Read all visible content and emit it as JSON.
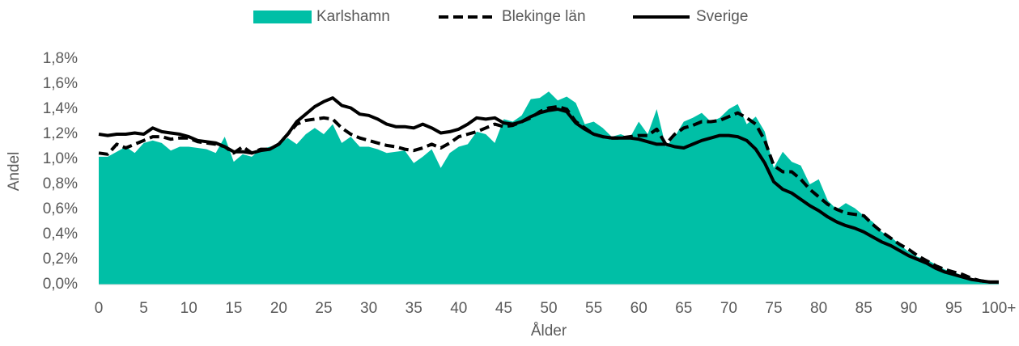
{
  "chart_data": {
    "type": "line",
    "x_label": "Ålder",
    "y_label": "Andel",
    "categories": [
      "0",
      null,
      null,
      null,
      null,
      "5",
      null,
      null,
      null,
      null,
      "10",
      null,
      null,
      null,
      null,
      "15",
      null,
      null,
      null,
      null,
      "20",
      null,
      null,
      null,
      null,
      "25",
      null,
      null,
      null,
      null,
      "30",
      null,
      null,
      null,
      null,
      "35",
      null,
      null,
      null,
      null,
      "40",
      null,
      null,
      null,
      null,
      "45",
      null,
      null,
      null,
      null,
      "50",
      null,
      null,
      null,
      null,
      "55",
      null,
      null,
      null,
      null,
      "60",
      null,
      null,
      null,
      null,
      "65",
      null,
      null,
      null,
      null,
      "70",
      null,
      null,
      null,
      null,
      "75",
      null,
      null,
      null,
      null,
      "80",
      null,
      null,
      null,
      null,
      "85",
      null,
      null,
      null,
      null,
      "90",
      null,
      null,
      null,
      null,
      "95",
      null,
      null,
      null,
      null,
      "100+"
    ],
    "ylim": [
      0,
      1.8
    ],
    "yticks": [
      {
        "value": 0,
        "label": "0,0%"
      },
      {
        "value": 0.2,
        "label": "0,2%"
      },
      {
        "value": 0.4,
        "label": "0,4%"
      },
      {
        "value": 0.6,
        "label": "0,6%"
      },
      {
        "value": 0.8,
        "label": "0,8%"
      },
      {
        "value": 1.0,
        "label": "1,0%"
      },
      {
        "value": 1.2,
        "label": "1,2%"
      },
      {
        "value": 1.4,
        "label": "1,4%"
      },
      {
        "value": 1.6,
        "label": "1,6%"
      },
      {
        "value": 1.8,
        "label": "1,8%"
      }
    ],
    "grid": false,
    "legend": "top",
    "series": [
      {
        "name": "Karlshamn",
        "type": "area",
        "color": "#00bfa6",
        "values": [
          1.02,
          1.02,
          1.06,
          1.1,
          1.05,
          1.13,
          1.15,
          1.13,
          1.07,
          1.1,
          1.1,
          1.09,
          1.08,
          1.05,
          1.18,
          0.98,
          1.04,
          1.02,
          1.08,
          1.1,
          1.12,
          1.17,
          1.12,
          1.2,
          1.25,
          1.2,
          1.28,
          1.13,
          1.18,
          1.1,
          1.1,
          1.08,
          1.05,
          1.06,
          1.07,
          0.97,
          1.02,
          1.08,
          0.93,
          1.05,
          1.1,
          1.12,
          1.22,
          1.2,
          1.13,
          1.32,
          1.3,
          1.35,
          1.48,
          1.49,
          1.54,
          1.47,
          1.5,
          1.45,
          1.28,
          1.3,
          1.25,
          1.18,
          1.2,
          1.17,
          1.3,
          1.2,
          1.4,
          1.1,
          1.18,
          1.3,
          1.33,
          1.37,
          1.3,
          1.33,
          1.4,
          1.44,
          1.28,
          1.34,
          1.22,
          0.93,
          1.06,
          0.98,
          0.95,
          0.8,
          0.84,
          0.67,
          0.6,
          0.65,
          0.61,
          0.55,
          0.5,
          0.42,
          0.38,
          0.32,
          0.26,
          0.22,
          0.2,
          0.16,
          0.12,
          0.1,
          0.07,
          0.04,
          0.02,
          0.01,
          0.02
        ]
      },
      {
        "name": "Blekinge län",
        "type": "line",
        "style": "dashed",
        "color": "#000000",
        "values": [
          1.05,
          1.04,
          1.12,
          1.09,
          1.12,
          1.15,
          1.18,
          1.18,
          1.16,
          1.17,
          1.17,
          1.14,
          1.13,
          1.12,
          1.1,
          1.05,
          1.1,
          1.05,
          1.08,
          1.08,
          1.12,
          1.2,
          1.28,
          1.31,
          1.32,
          1.33,
          1.32,
          1.25,
          1.2,
          1.17,
          1.15,
          1.13,
          1.11,
          1.1,
          1.08,
          1.07,
          1.09,
          1.12,
          1.09,
          1.13,
          1.18,
          1.2,
          1.22,
          1.25,
          1.28,
          1.26,
          1.27,
          1.3,
          1.33,
          1.38,
          1.41,
          1.42,
          1.4,
          1.3,
          1.25,
          1.2,
          1.18,
          1.17,
          1.17,
          1.18,
          1.19,
          1.19,
          1.24,
          1.12,
          1.2,
          1.25,
          1.27,
          1.3,
          1.3,
          1.31,
          1.34,
          1.37,
          1.33,
          1.28,
          1.15,
          0.95,
          0.9,
          0.9,
          0.84,
          0.76,
          0.7,
          0.64,
          0.6,
          0.57,
          0.56,
          0.55,
          0.48,
          0.42,
          0.37,
          0.32,
          0.28,
          0.23,
          0.19,
          0.15,
          0.12,
          0.1,
          0.08,
          0.05,
          0.03,
          0.02,
          0.02
        ]
      },
      {
        "name": "Sverige",
        "type": "line",
        "style": "solid",
        "color": "#000000",
        "values": [
          1.2,
          1.19,
          1.2,
          1.2,
          1.21,
          1.2,
          1.25,
          1.22,
          1.21,
          1.2,
          1.18,
          1.15,
          1.14,
          1.13,
          1.1,
          1.06,
          1.06,
          1.05,
          1.07,
          1.08,
          1.12,
          1.2,
          1.3,
          1.36,
          1.42,
          1.46,
          1.49,
          1.43,
          1.41,
          1.36,
          1.35,
          1.32,
          1.28,
          1.26,
          1.26,
          1.25,
          1.28,
          1.25,
          1.21,
          1.22,
          1.24,
          1.28,
          1.33,
          1.32,
          1.33,
          1.29,
          1.28,
          1.3,
          1.34,
          1.37,
          1.39,
          1.4,
          1.38,
          1.29,
          1.24,
          1.2,
          1.18,
          1.17,
          1.17,
          1.17,
          1.16,
          1.14,
          1.12,
          1.12,
          1.1,
          1.09,
          1.12,
          1.15,
          1.17,
          1.19,
          1.19,
          1.18,
          1.15,
          1.08,
          0.97,
          0.82,
          0.76,
          0.73,
          0.68,
          0.63,
          0.59,
          0.54,
          0.5,
          0.47,
          0.45,
          0.42,
          0.38,
          0.34,
          0.31,
          0.27,
          0.23,
          0.2,
          0.17,
          0.13,
          0.1,
          0.08,
          0.06,
          0.04,
          0.03,
          0.02,
          0.02
        ]
      }
    ]
  }
}
